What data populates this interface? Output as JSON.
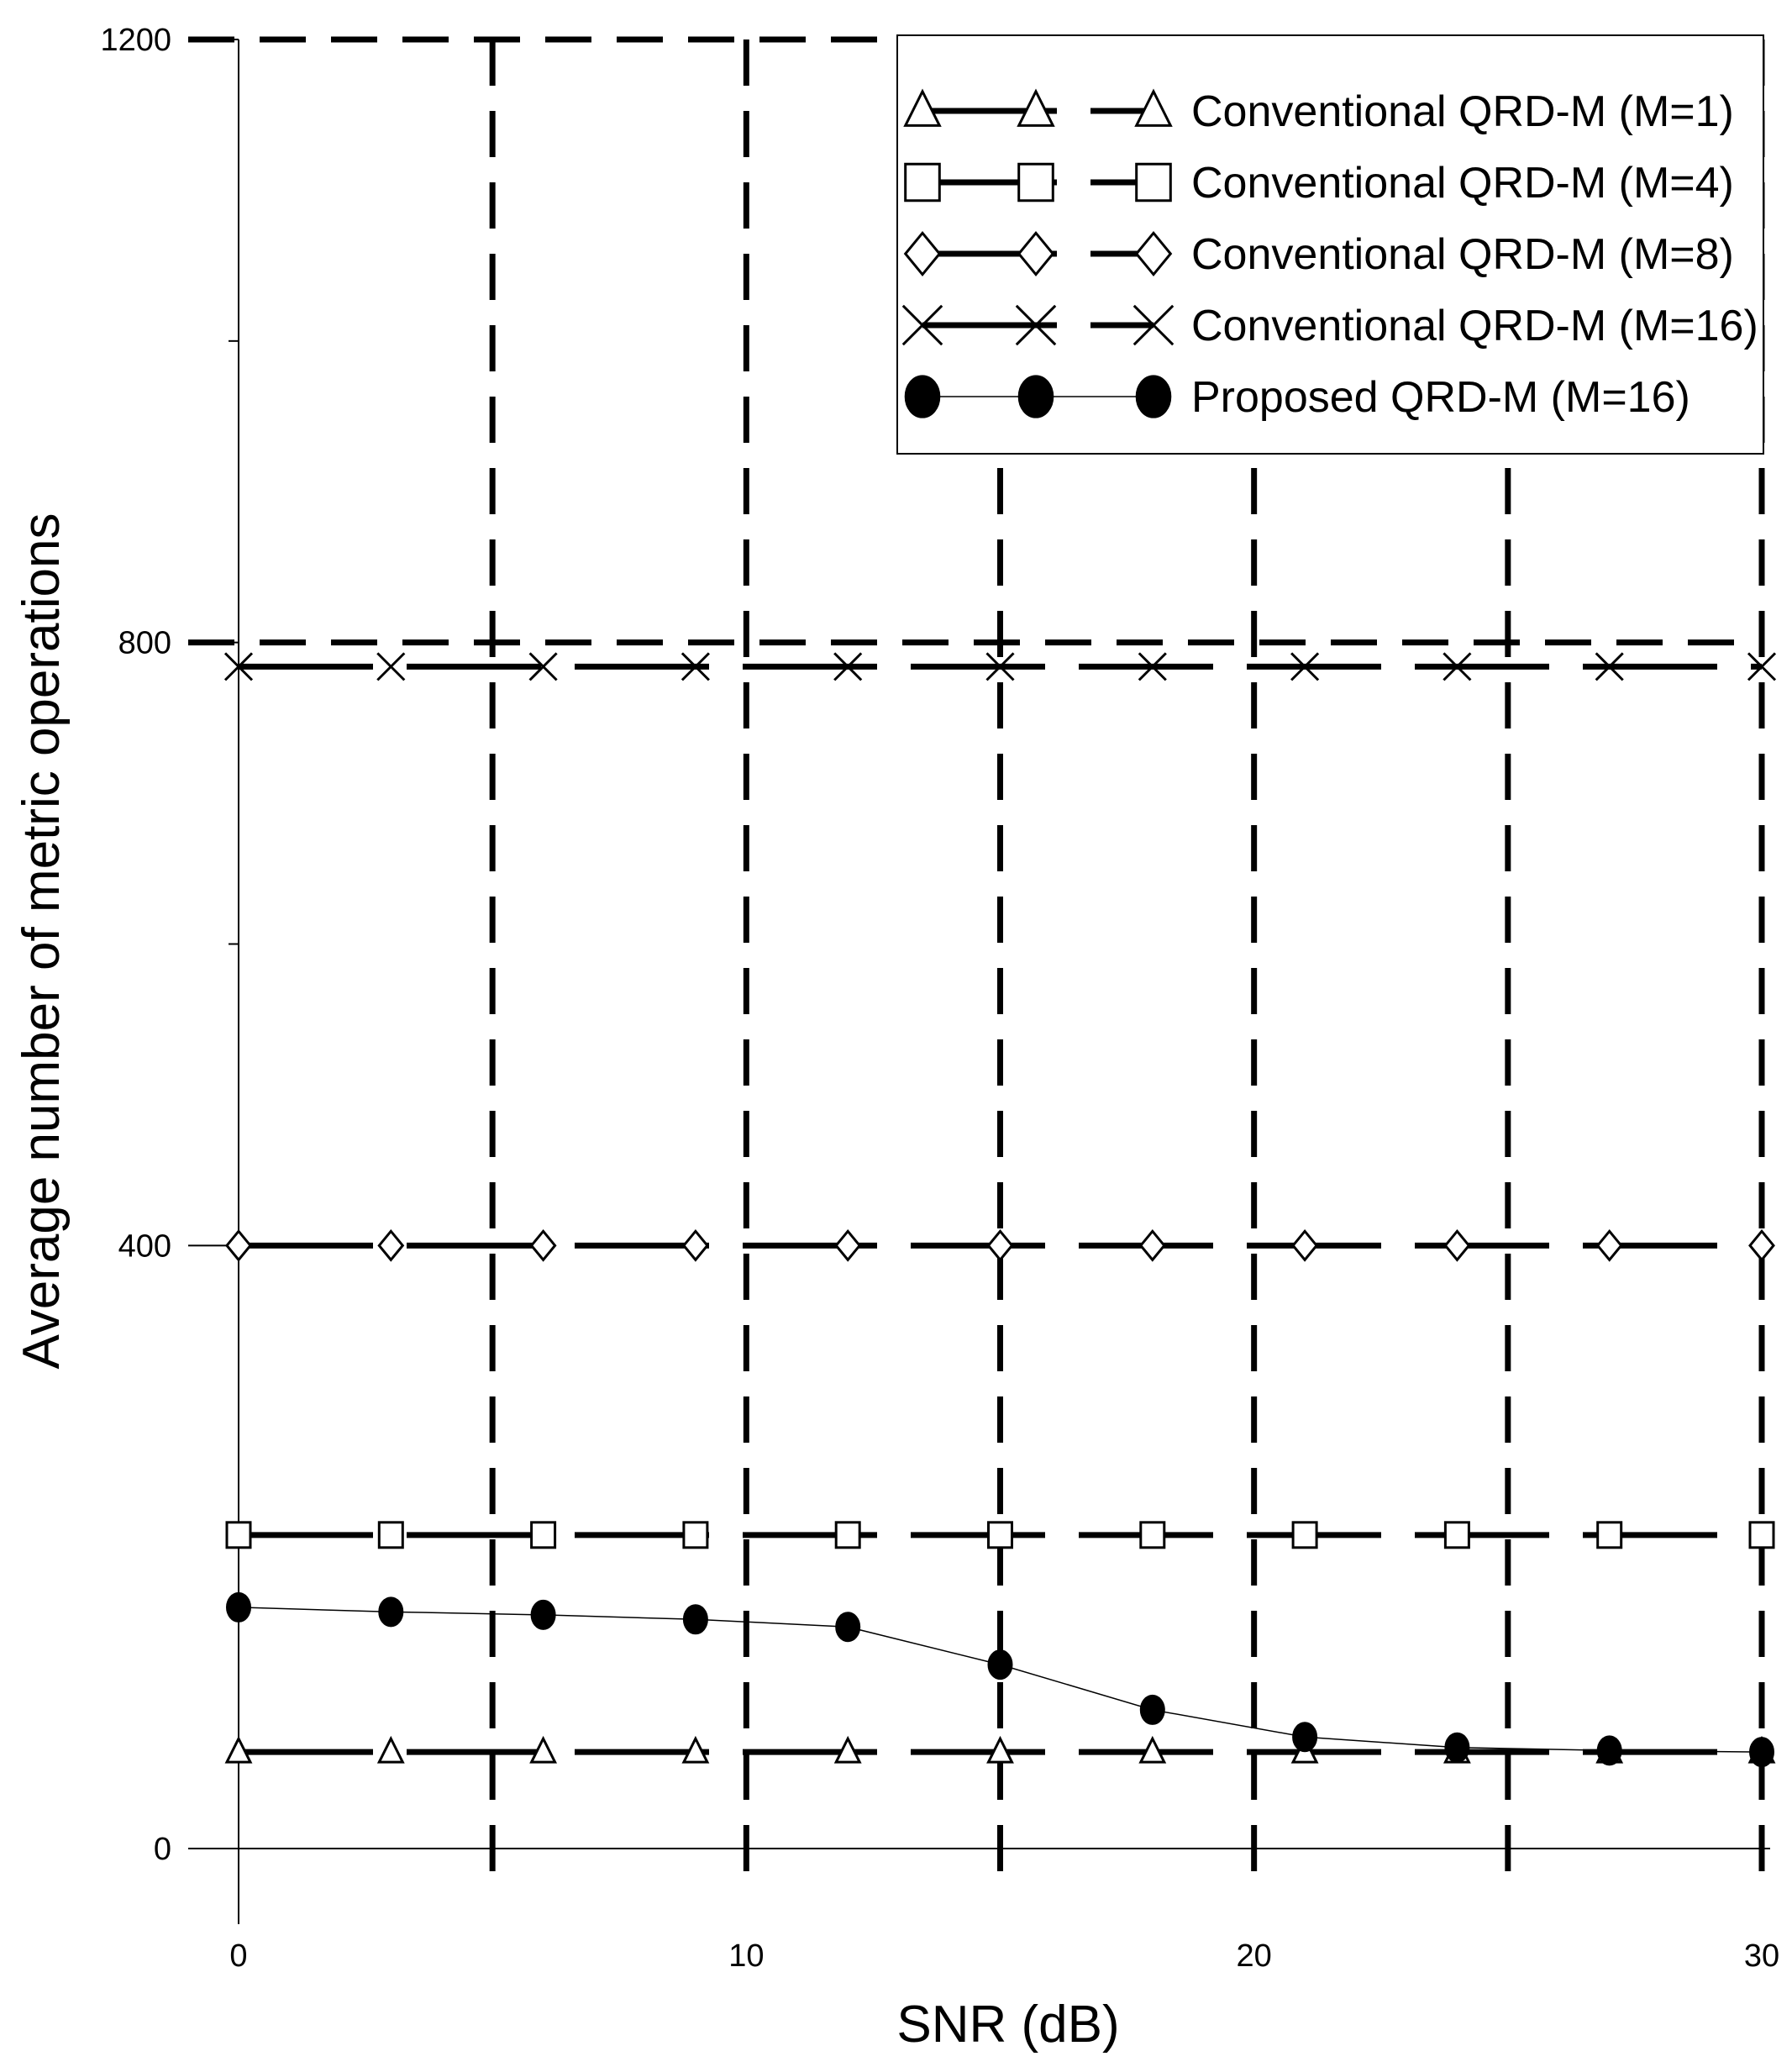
{
  "chart_data": {
    "type": "line",
    "title": "",
    "xlabel": "SNR (dB)",
    "ylabel": "Average number of metric operations",
    "xlim": [
      0,
      30
    ],
    "ylim": [
      0,
      1200
    ],
    "x_ticks": [
      "0",
      "10",
      "20",
      "30"
    ],
    "x_tick_values": [
      0,
      10,
      20,
      30
    ],
    "y_ticks": [
      "0",
      "400",
      "800",
      "1200"
    ],
    "y_tick_values": [
      0,
      400,
      800,
      1200
    ],
    "y_minor_tick_values": [
      200,
      600,
      1000
    ],
    "grid": "dashed",
    "grid_x_values": [
      5,
      10,
      15,
      20,
      25,
      30
    ],
    "grid_y_values": [
      800,
      1200
    ],
    "legend_position": "top-right",
    "x": [
      0,
      3,
      6,
      9,
      12,
      15,
      18,
      21,
      24,
      27,
      30
    ],
    "series": [
      {
        "name": "Conventional QRD-M (M=1)",
        "marker": "triangle",
        "line": "long-dash",
        "values": [
          64,
          64,
          64,
          64,
          64,
          64,
          64,
          64,
          64,
          64,
          64
        ]
      },
      {
        "name": "Conventional QRD-M (M=4)",
        "marker": "square",
        "line": "long-dash",
        "values": [
          208,
          208,
          208,
          208,
          208,
          208,
          208,
          208,
          208,
          208,
          208
        ]
      },
      {
        "name": "Conventional QRD-M (M=8)",
        "marker": "diamond",
        "line": "long-dash",
        "values": [
          400,
          400,
          400,
          400,
          400,
          400,
          400,
          400,
          400,
          400,
          400
        ]
      },
      {
        "name": "Conventional QRD-M (M=16)",
        "marker": "x",
        "line": "long-dash",
        "values": [
          784,
          784,
          784,
          784,
          784,
          784,
          784,
          784,
          784,
          784,
          784
        ]
      },
      {
        "name": "Proposed QRD-M (M=16)",
        "marker": "filled-circle",
        "line": "solid-thin",
        "values": [
          160,
          157,
          155,
          152,
          147,
          122,
          92,
          74,
          67,
          65,
          64
        ]
      }
    ]
  }
}
